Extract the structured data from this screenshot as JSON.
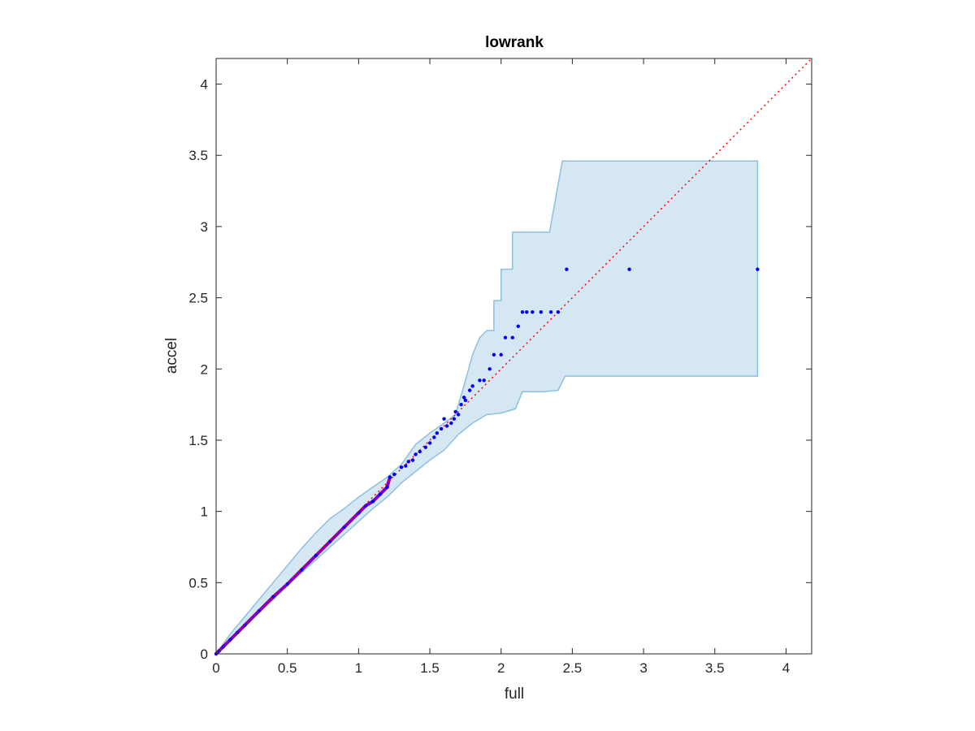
{
  "chart_data": {
    "type": "scatter",
    "title": "lowrank",
    "xlabel": "full",
    "ylabel": "accel",
    "xlim": [
      0,
      4.18
    ],
    "ylim": [
      0,
      4.18
    ],
    "xticks": [
      "0",
      "0.5",
      "1",
      "1.5",
      "2",
      "2.5",
      "3",
      "3.5",
      "4"
    ],
    "yticks": [
      "0",
      "0.5",
      "1",
      "1.5",
      "2",
      "2.5",
      "3",
      "3.5",
      "4"
    ],
    "grid": false,
    "colors": {
      "points": "#0000ff",
      "points_trail": "#7a00d0",
      "reference_line": "#ff0000",
      "band_fill": "#d6e7f4",
      "band_edge": "#8cc0de",
      "axis": "#262626"
    },
    "reference_line": {
      "style": "dotted",
      "from": [
        0,
        0
      ],
      "to": [
        4.18,
        4.18
      ]
    },
    "confidence_band": {
      "upper": [
        [
          0,
          0
        ],
        [
          0.1,
          0.14
        ],
        [
          0.2,
          0.26
        ],
        [
          0.3,
          0.38
        ],
        [
          0.4,
          0.5
        ],
        [
          0.5,
          0.62
        ],
        [
          0.6,
          0.74
        ],
        [
          0.7,
          0.85
        ],
        [
          0.8,
          0.95
        ],
        [
          0.9,
          1.02
        ],
        [
          1.0,
          1.1
        ],
        [
          1.1,
          1.17
        ],
        [
          1.2,
          1.24
        ],
        [
          1.3,
          1.33
        ],
        [
          1.4,
          1.47
        ],
        [
          1.5,
          1.55
        ],
        [
          1.6,
          1.62
        ],
        [
          1.68,
          1.68
        ],
        [
          1.75,
          1.92
        ],
        [
          1.8,
          2.1
        ],
        [
          1.85,
          2.22
        ],
        [
          1.9,
          2.27
        ],
        [
          1.95,
          2.27
        ],
        [
          1.95,
          2.48
        ],
        [
          2.0,
          2.48
        ],
        [
          2.0,
          2.7
        ],
        [
          2.05,
          2.7
        ],
        [
          2.08,
          2.7
        ],
        [
          2.08,
          2.96
        ],
        [
          2.25,
          2.96
        ],
        [
          2.3,
          2.96
        ],
        [
          2.34,
          2.96
        ],
        [
          2.43,
          3.46
        ],
        [
          3.8,
          3.46
        ]
      ],
      "lower": [
        [
          3.8,
          1.95
        ],
        [
          2.45,
          1.95
        ],
        [
          2.4,
          1.85
        ],
        [
          2.3,
          1.84
        ],
        [
          2.2,
          1.84
        ],
        [
          2.15,
          1.84
        ],
        [
          2.1,
          1.72
        ],
        [
          2.0,
          1.69
        ],
        [
          1.9,
          1.68
        ],
        [
          1.8,
          1.62
        ],
        [
          1.7,
          1.54
        ],
        [
          1.6,
          1.43
        ],
        [
          1.5,
          1.36
        ],
        [
          1.4,
          1.28
        ],
        [
          1.3,
          1.2
        ],
        [
          1.2,
          1.1
        ],
        [
          1.1,
          1.02
        ],
        [
          1.0,
          0.93
        ],
        [
          0.9,
          0.84
        ],
        [
          0.8,
          0.75
        ],
        [
          0.7,
          0.66
        ],
        [
          0.6,
          0.57
        ],
        [
          0.5,
          0.48
        ],
        [
          0.4,
          0.38
        ],
        [
          0.3,
          0.29
        ],
        [
          0.2,
          0.19
        ],
        [
          0.1,
          0.09
        ],
        [
          0,
          0
        ]
      ]
    },
    "points": [
      [
        1.22,
        1.24
      ],
      [
        1.25,
        1.26
      ],
      [
        1.3,
        1.31
      ],
      [
        1.33,
        1.32
      ],
      [
        1.35,
        1.35
      ],
      [
        1.38,
        1.36
      ],
      [
        1.4,
        1.4
      ],
      [
        1.43,
        1.42
      ],
      [
        1.47,
        1.45
      ],
      [
        1.5,
        1.48
      ],
      [
        1.53,
        1.52
      ],
      [
        1.55,
        1.55
      ],
      [
        1.58,
        1.58
      ],
      [
        1.62,
        1.6
      ],
      [
        1.65,
        1.62
      ],
      [
        1.67,
        1.65
      ],
      [
        1.7,
        1.68
      ],
      [
        1.72,
        1.75
      ],
      [
        1.74,
        1.8
      ],
      [
        1.78,
        1.85
      ],
      [
        1.8,
        1.88
      ],
      [
        1.85,
        1.92
      ],
      [
        1.88,
        1.92
      ],
      [
        1.92,
        2.0
      ],
      [
        1.95,
        2.1
      ],
      [
        2.0,
        2.1
      ],
      [
        2.03,
        2.22
      ],
      [
        2.08,
        2.22
      ],
      [
        2.12,
        2.3
      ],
      [
        2.15,
        2.4
      ],
      [
        2.18,
        2.4
      ],
      [
        2.22,
        2.4
      ],
      [
        2.28,
        2.4
      ],
      [
        2.35,
        2.4
      ],
      [
        2.4,
        2.4
      ],
      [
        2.46,
        2.7
      ],
      [
        2.9,
        2.7
      ],
      [
        3.8,
        2.7
      ],
      [
        1.6,
        1.65
      ],
      [
        1.68,
        1.7
      ],
      [
        1.75,
        1.78
      ]
    ],
    "trail": [
      [
        0,
        0
      ],
      [
        0.02,
        0.02
      ],
      [
        0.05,
        0.05
      ],
      [
        0.1,
        0.1
      ],
      [
        0.15,
        0.15
      ],
      [
        0.2,
        0.2
      ],
      [
        0.3,
        0.3
      ],
      [
        0.4,
        0.4
      ],
      [
        0.5,
        0.49
      ],
      [
        0.6,
        0.59
      ],
      [
        0.7,
        0.69
      ],
      [
        0.8,
        0.79
      ],
      [
        0.9,
        0.89
      ],
      [
        1.0,
        0.99
      ],
      [
        1.05,
        1.04
      ],
      [
        1.1,
        1.07
      ],
      [
        1.15,
        1.12
      ],
      [
        1.2,
        1.17
      ],
      [
        1.22,
        1.24
      ]
    ]
  }
}
